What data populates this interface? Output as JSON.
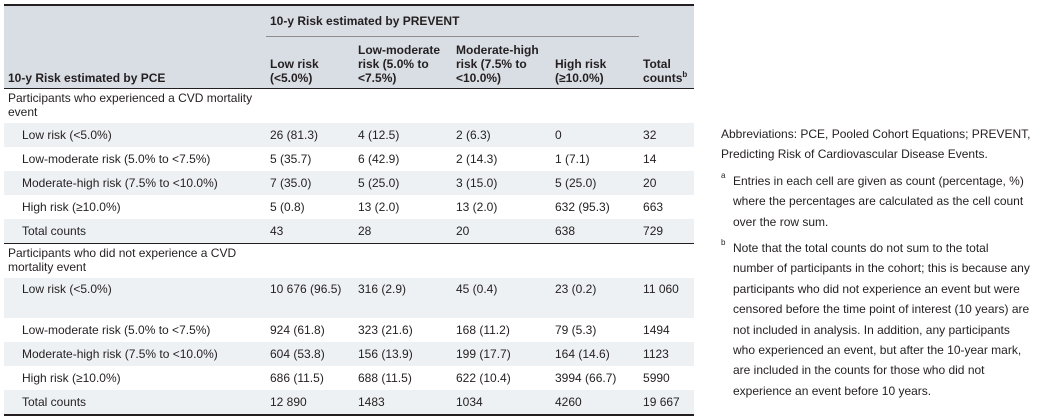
{
  "table": {
    "group_header": "10-y Risk estimated by PREVENT",
    "row_header": "10-y Risk estimated by PCE",
    "columns": [
      "Low risk (<5.0%)",
      "Low-moderate risk (5.0% to <7.5%)",
      "Moderate-high risk (7.5% to <10.0%)",
      "High risk (≥10.0%)",
      "Total counts"
    ],
    "total_counts_sup": "b",
    "sections": [
      {
        "title": "Participants who experienced a CVD mortality event",
        "rows": [
          {
            "label": "Low risk (<5.0%)",
            "cells": [
              "26 (81.3)",
              "4 (12.5)",
              "2 (6.3)",
              "0",
              "32"
            ]
          },
          {
            "label": "Low-moderate risk (5.0% to <7.5%)",
            "cells": [
              "5 (35.7)",
              "6 (42.9)",
              "2 (14.3)",
              "1 (7.1)",
              "14"
            ]
          },
          {
            "label": "Moderate-high risk (7.5% to <10.0%)",
            "cells": [
              "7 (35.0)",
              "5 (25.0)",
              "3 (15.0)",
              "5 (25.0)",
              "20"
            ]
          },
          {
            "label": "High risk (≥10.0%)",
            "cells": [
              "5 (0.8)",
              "13 (2.0)",
              "13 (2.0)",
              "632 (95.3)",
              "663"
            ]
          },
          {
            "label": "Total counts",
            "cells": [
              "43",
              "28",
              "20",
              "638",
              "729"
            ]
          }
        ]
      },
      {
        "title": "Participants who did not experience a CVD mortality event",
        "rows": [
          {
            "label": "Low risk (<5.0%)",
            "cells": [
              "10 676 (96.5)",
              "316 (2.9)",
              "45 (0.4)",
              "23 (0.2)",
              "11 060"
            ]
          },
          {
            "label": "Low-moderate risk (5.0% to <7.5%)",
            "cells": [
              "924 (61.8)",
              "323 (21.6)",
              "168 (11.2)",
              "79 (5.3)",
              "1494"
            ]
          },
          {
            "label": "Moderate-high risk (7.5% to <10.0%)",
            "cells": [
              "604 (53.8)",
              "156 (13.9)",
              "199 (17.7)",
              "164 (14.6)",
              "1123"
            ]
          },
          {
            "label": "High risk (≥10.0%)",
            "cells": [
              "686 (11.5)",
              "688 (11.5)",
              "622 (10.4)",
              "3994 (66.7)",
              "5990"
            ]
          },
          {
            "label": "Total counts",
            "cells": [
              "12 890",
              "1483",
              "1034",
              "4260",
              "19 667"
            ]
          }
        ]
      }
    ]
  },
  "notes": {
    "abbreviations": "Abbreviations: PCE, Pooled Cohort Equations; PREVENT, Predicting Risk of Cardiovascular Disease Events.",
    "footnote_a_mark": "a",
    "footnote_a": "Entries in each cell are given as count (percentage, %) where the percentages are calculated as the cell count over the row sum.",
    "footnote_b_mark": "b",
    "footnote_b": "Note that the total counts do not sum to the total number of participants in the cohort; this is because any participants who did not experience an event but were censored before the time point of interest (10 years) are not included in analysis. In addition, any participants who experienced an event, but after the 10-year mark, are included in the counts for those who did not experience an event before 10 years."
  }
}
